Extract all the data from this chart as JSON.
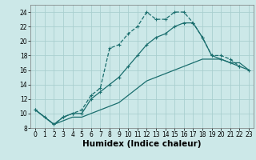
{
  "xlabel": "Humidex (Indice chaleur)",
  "bg_color": "#cce8e8",
  "grid_color": "#aacfcf",
  "line_color": "#1a6e6e",
  "xlim": [
    -0.5,
    23.5
  ],
  "ylim": [
    8,
    25
  ],
  "xticks": [
    0,
    1,
    2,
    3,
    4,
    5,
    6,
    7,
    8,
    9,
    10,
    11,
    12,
    13,
    14,
    15,
    16,
    17,
    18,
    19,
    20,
    21,
    22,
    23
  ],
  "yticks": [
    8,
    10,
    12,
    14,
    16,
    18,
    20,
    22,
    24
  ],
  "line1_x": [
    0,
    1,
    2,
    3,
    4,
    5,
    6,
    7,
    8,
    9,
    10,
    11,
    12,
    13,
    14,
    15,
    16,
    17,
    18,
    19,
    20,
    21,
    22
  ],
  "line1_y": [
    10.5,
    9.5,
    8.5,
    9.5,
    10.0,
    10.5,
    12.5,
    13.5,
    19.0,
    19.5,
    21.0,
    22.0,
    24.0,
    23.0,
    23.0,
    24.0,
    24.0,
    22.5,
    20.5,
    18.0,
    18.0,
    17.5,
    16.5
  ],
  "line2_x": [
    0,
    2,
    3,
    4,
    5,
    6,
    7,
    8,
    9,
    10,
    11,
    12,
    13,
    14,
    15,
    16,
    17,
    18,
    19,
    20,
    21,
    22,
    23
  ],
  "line2_y": [
    10.5,
    8.5,
    9.5,
    10.0,
    10.0,
    12.0,
    13.0,
    14.0,
    15.0,
    16.5,
    18.0,
    19.5,
    20.5,
    21.0,
    22.0,
    22.5,
    22.5,
    20.5,
    18.0,
    17.5,
    17.0,
    16.5,
    16.0
  ],
  "line3_x": [
    0,
    2,
    3,
    4,
    5,
    6,
    7,
    8,
    9,
    10,
    11,
    12,
    13,
    14,
    15,
    16,
    17,
    18,
    19,
    20,
    21,
    22,
    23
  ],
  "line3_y": [
    10.5,
    8.5,
    9.0,
    9.5,
    9.5,
    10.0,
    10.5,
    11.0,
    11.5,
    12.5,
    13.5,
    14.5,
    15.0,
    15.5,
    16.0,
    16.5,
    17.0,
    17.5,
    17.5,
    17.5,
    17.0,
    17.0,
    16.0
  ],
  "lw": 0.9,
  "markersize": 3.5,
  "tick_fontsize": 5.5,
  "xlabel_fontsize": 7.5
}
